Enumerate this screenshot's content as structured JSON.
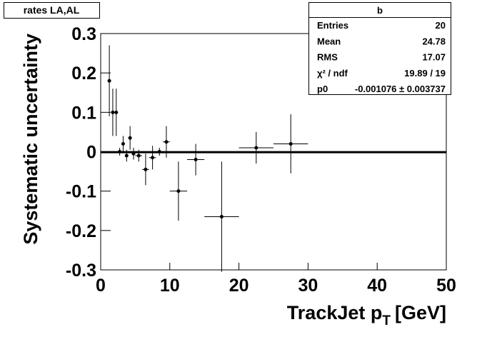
{
  "chart_data": {
    "type": "scatter",
    "title": "rates LA,AL",
    "x_label": {
      "main": "TrackJet p",
      "sub": "T",
      "unit": "[GeV]"
    },
    "y_label": "Systematic uncertainty",
    "x": [
      1.25,
      1.75,
      2.25,
      2.75,
      3.25,
      3.75,
      4.25,
      4.75,
      5.5,
      6.5,
      7.5,
      8.5,
      9.5,
      11.25,
      13.75,
      17.5,
      22.5,
      27.5
    ],
    "x_errors": [
      0.25,
      0.25,
      0.25,
      0.25,
      0.25,
      0.25,
      0.25,
      0.25,
      0.5,
      0.5,
      0.5,
      0.5,
      0.5,
      1.25,
      1.25,
      2.5,
      2.5,
      2.5
    ],
    "values": [
      0.18,
      0.1,
      0.1,
      0.0,
      0.02,
      -0.01,
      0.035,
      -0.005,
      -0.01,
      -0.045,
      -0.015,
      0.0,
      0.025,
      -0.1,
      -0.02,
      -0.165,
      0.01,
      0.02
    ],
    "errors": [
      0.09,
      0.06,
      0.06,
      0.01,
      0.02,
      0.015,
      0.03,
      0.015,
      0.015,
      0.04,
      0.03,
      0.01,
      0.04,
      0.075,
      0.04,
      0.14,
      0.04,
      0.075
    ],
    "color": "#000000",
    "xlim": [
      0,
      50
    ],
    "ylim": [
      -0.3,
      0.3
    ],
    "xticks": [
      0,
      10,
      20,
      30,
      40,
      50
    ],
    "yticks": [
      -0.3,
      -0.2,
      -0.1,
      0,
      0.1,
      0.2,
      0.3
    ],
    "stats": {
      "title": "b",
      "rows": [
        {
          "label": "Entries",
          "value": "20"
        },
        {
          "label": "Mean",
          "value": "24.78"
        },
        {
          "label": "RMS",
          "value": "17.07"
        },
        {
          "label": "χ² / ndf",
          "value": "19.89 / 19"
        },
        {
          "label": "p0",
          "value": "-0.001076 ± 0.003737",
          "fit": -0.001076
        }
      ]
    }
  }
}
